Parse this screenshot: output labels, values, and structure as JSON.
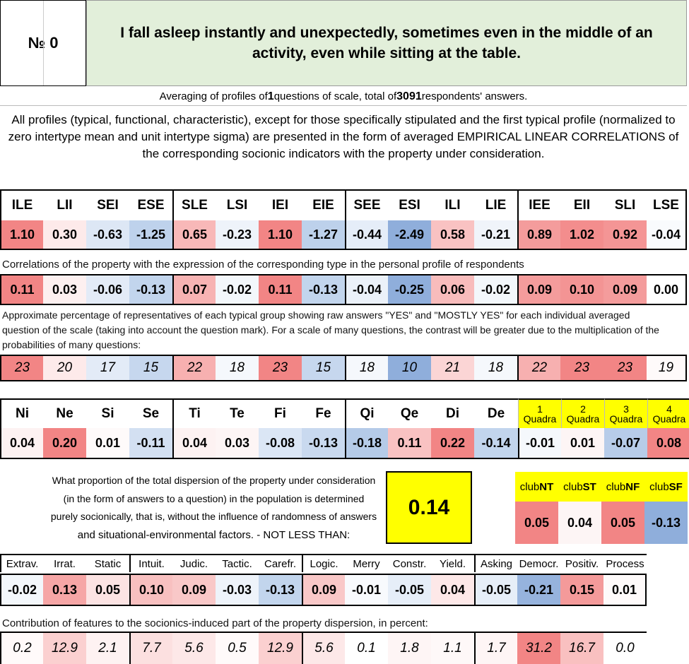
{
  "header": {
    "number_label": "№ 0",
    "question": "I fall asleep instantly and unexpectedly, sometimes even in the middle of an activity, even while sitting at the table."
  },
  "averaging": {
    "prefix": "Averaging of profiles of ",
    "questions_count": "1",
    "middle": " questions of scale, total of ",
    "respondents_count": "3091",
    "suffix": " respondents' answers."
  },
  "intro_text": "All profiles (typical, functional, characteristic), except for those specifically stipulated and the first typical profile (normalized to zero intertype mean and unit intertype sigma) are presented in the form of averaged EMPIRICAL LINEAR CORRELATIONS of the corresponding socionic indicators with the property under consideration.",
  "types": {
    "labels": [
      "ILE",
      "LII",
      "SEI",
      "ESE",
      "SLE",
      "LSI",
      "IEI",
      "EIE",
      "SEE",
      "ESI",
      "ILI",
      "LIE",
      "IEE",
      "EII",
      "SLI",
      "LSE"
    ],
    "values": [
      "1.10",
      "0.30",
      "-0.63",
      "-1.25",
      "0.65",
      "-0.23",
      "1.10",
      "-1.27",
      "-0.44",
      "-2.49",
      "0.58",
      "-0.21",
      "0.89",
      "1.02",
      "0.92",
      "-0.04"
    ],
    "colors": [
      "#f28585",
      "#fdeaea",
      "#dde7f5",
      "#bed2ec",
      "#f8b8b8",
      "#eef3fa",
      "#f28585",
      "#bdd1eb",
      "#e5edf8",
      "#8faedb",
      "#f9c2c2",
      "#f0f4fa",
      "#f49c9c",
      "#f38d8d",
      "#f49595",
      "#f9fbfd"
    ]
  },
  "correlation_caption": "Correlations of the property with the expression of the corresponding type in the personal profile of respondents",
  "correlations": {
    "values": [
      "0.11",
      "0.03",
      "-0.06",
      "-0.13",
      "0.07",
      "-0.02",
      "0.11",
      "-0.13",
      "-0.04",
      "-0.25",
      "0.06",
      "-0.02",
      "0.09",
      "0.10",
      "0.09",
      "0.00"
    ],
    "colors": [
      "#f28585",
      "#fdf0f0",
      "#e3ebf7",
      "#c2d5ed",
      "#f7b3b3",
      "#f3f7fb",
      "#f28585",
      "#c2d5ed",
      "#ebf1f9",
      "#8faedb",
      "#f8bcbc",
      "#f3f7fb",
      "#f49c9c",
      "#f39494",
      "#f49c9c",
      "#ffffff"
    ]
  },
  "percentage_caption": "Approximate percentage of representatives of each typical group showing raw answers \"YES\" and \"MOSTLY YES\" for each individual averaged question of the scale (taking into account the question mark). For a scale of many questions, the contrast will be greater due to the multiplication of the probabilities of many questions:",
  "percentages": {
    "values": [
      "23",
      "20",
      "17",
      "15",
      "22",
      "18",
      "23",
      "15",
      "18",
      "10",
      "21",
      "18",
      "22",
      "23",
      "23",
      "19"
    ],
    "colors": [
      "#f28585",
      "#fdeaea",
      "#e3ebf7",
      "#c6d7ee",
      "#f7b0b0",
      "#f5f8fc",
      "#f28585",
      "#c6d7ee",
      "#f5f8fc",
      "#8faedb",
      "#fbd5d5",
      "#f5f8fc",
      "#f7b0b0",
      "#f28585",
      "#f28585",
      "#fefafa"
    ]
  },
  "functions": {
    "labels": [
      "Ni",
      "Ne",
      "Si",
      "Se",
      "Ti",
      "Te",
      "Fi",
      "Fe",
      "Qi",
      "Qe",
      "Di",
      "De"
    ],
    "values": [
      "0.04",
      "0.20",
      "0.01",
      "-0.11",
      "0.04",
      "0.03",
      "-0.08",
      "-0.13",
      "-0.18",
      "0.11",
      "0.22",
      "-0.14"
    ],
    "colors": [
      "#fdf2f2",
      "#f28585",
      "#fefafa",
      "#d3e0f2",
      "#fdf2f2",
      "#fdf5f5",
      "#dbe6f5",
      "#c9d9ef",
      "#b5cbe8",
      "#f9c2c2",
      "#f28585",
      "#c2d5ed"
    ]
  },
  "quadras": {
    "labels": [
      {
        "n": "1",
        "t": "Quadra"
      },
      {
        "n": "2",
        "t": "Quadra"
      },
      {
        "n": "3",
        "t": "Quadra"
      },
      {
        "n": "4",
        "t": "Quadra"
      }
    ],
    "values": [
      "-0.01",
      "0.01",
      "-0.07",
      "0.08"
    ],
    "colors": [
      "#f5f8fc",
      "#fdf5f5",
      "#b7cce9",
      "#f28585"
    ]
  },
  "dispersion": {
    "line1": "What proportion of the total dispersion of the property under consideration",
    "line2": "(in the form of answers to a question) in the population is determined",
    "line3": "purely socionically, that is, without the influence of randomness of answers",
    "line4": "and situational-environmental factors. - NOT LESS THAN:",
    "value": "0.14"
  },
  "clubs": {
    "labels": [
      {
        "p": "club",
        "b": "NT"
      },
      {
        "p": "club",
        "b": "ST"
      },
      {
        "p": "club",
        "b": "NF"
      },
      {
        "p": "club",
        "b": "SF"
      }
    ],
    "values": [
      "0.05",
      "0.04",
      "0.05",
      "-0.13"
    ],
    "colors": [
      "#f28585",
      "#fdf5f5",
      "#f28585",
      "#8faedb"
    ]
  },
  "features": {
    "labels": [
      "Extrav.",
      "Irrat.",
      "Static",
      "Intuit.",
      "Judic.",
      "Tactic.",
      "Carefr.",
      "Logic.",
      "Merry",
      "Constr.",
      "Yield.",
      "Asking",
      "Democr.",
      "Positiv.",
      "Process"
    ],
    "values": [
      "-0.02",
      "0.13",
      "0.05",
      "0.10",
      "0.09",
      "-0.03",
      "-0.13",
      "0.09",
      "-0.01",
      "-0.05",
      "0.04",
      "-0.05",
      "-0.21",
      "0.15",
      "0.01"
    ],
    "colors": [
      "#f3f7fb",
      "#f6a6a6",
      "#fce3e3",
      "#f8c0c0",
      "#f9c8c8",
      "#eef3fa",
      "#c2d5ed",
      "#f9c8c8",
      "#f8fafd",
      "#e6eef8",
      "#fde8e8",
      "#e6eef8",
      "#96b3dd",
      "#f49a9a",
      "#fefafa"
    ]
  },
  "contribution_caption": "Contribution of features to the socionics-induced part of the property dispersion, in percent:",
  "contributions": {
    "values": [
      "0.2",
      "12.9",
      "2.1",
      "7.7",
      "5.6",
      "0.5",
      "12.9",
      "5.6",
      "0.1",
      "1.8",
      "1.1",
      "1.7",
      "31.2",
      "16.7",
      "0.0"
    ],
    "colors": [
      "#fffafa",
      "#fbd0d0",
      "#fef2f2",
      "#fce0e0",
      "#fde8e8",
      "#fffafa",
      "#fbd0d0",
      "#fde8e8",
      "#ffffff",
      "#fef5f5",
      "#fef8f8",
      "#fef5f5",
      "#f28585",
      "#f9c0c0",
      "#ffffff"
    ]
  }
}
